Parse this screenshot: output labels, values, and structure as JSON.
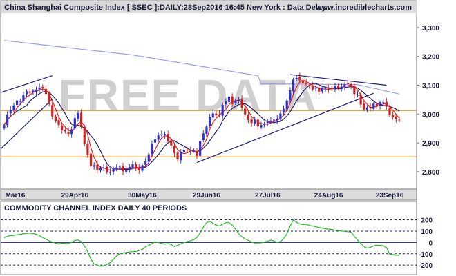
{
  "header": {
    "title": "China Shanghai Composite Index [ SSEC ]:DAILY:28Sep2016 16:45 New York : Data Delay..",
    "site": "www.incrediblecharts.com",
    "watermark": "FREE DATA"
  },
  "colors": {
    "background": "#ffffff",
    "panel_border": "#7f7f7f",
    "up_candle": "#3333cc",
    "down_candle": "#cc2222",
    "ma_fast": "#e02020",
    "ma_mid": "#1c1c6e",
    "ma_slow": "#9a9aff",
    "support_line": "#d98a00",
    "trend_line": "#1a1a80",
    "cci_line": "#22bb22",
    "cci_ref_line": "#1c1c6e",
    "title_bar": "#d9d9d9",
    "date_bar": "#dcdcdc"
  },
  "chart_data": [
    {
      "type": "candlestick",
      "title": "China Shanghai Composite Index [ SSEC ]:DAILY:28Sep2016 16:45 New York : Data Delay..",
      "y_ticks": [
        3300,
        3200,
        3100,
        3000,
        2900,
        2800
      ],
      "y_tick_labels": [
        "3,300",
        "3,200",
        "3,100",
        "3,000",
        "2,900",
        "2,800"
      ],
      "ylim": [
        2740,
        3350
      ],
      "x_tick_labels": [
        "Mar16",
        "29Apr16",
        "30May16",
        "29Jun16",
        "27Jul16",
        "24Aug16",
        "23Sep16"
      ],
      "x_tick_positions": [
        0,
        22,
        43,
        63,
        82,
        101,
        120
      ],
      "bar_count": 124,
      "horizontal_lines": [
        3012,
        2852
      ],
      "trend_lines": [
        {
          "from": [
            -1,
            3075
          ],
          "to": [
            15,
            3133
          ]
        },
        {
          "from": [
            -1,
            2880
          ],
          "to": [
            15,
            3052
          ]
        },
        {
          "from": [
            89,
            3137
          ],
          "to": [
            119,
            3100
          ]
        },
        {
          "from": [
            60,
            2832
          ],
          "to": [
            115,
            3072
          ]
        }
      ],
      "closes": [
        2962,
        2999,
        3014,
        3030,
        3047,
        3045,
        3066,
        3079,
        3074,
        3081,
        3085,
        3091,
        3089,
        3070,
        3034,
        2992,
        2976,
        2962,
        2944,
        2940,
        2931,
        2947,
        2986,
        3003,
        2955,
        2898,
        2860,
        2819,
        2823,
        2807,
        2812,
        2814,
        2798,
        2799,
        2811,
        2815,
        2818,
        2801,
        2806,
        2817,
        2826,
        2811,
        2805,
        2823,
        2837,
        2861,
        2898,
        2912,
        2926,
        2930,
        2931,
        2906,
        2891,
        2865,
        2843,
        2869,
        2874,
        2875,
        2871,
        2873,
        2855,
        2907,
        2933,
        2957,
        2991,
        3002,
        2996,
        2996,
        3032,
        3044,
        3061,
        3035,
        3046,
        3050,
        3022,
        2998,
        2979,
        2969,
        2979,
        2957,
        2962,
        2967,
        2973,
        2976,
        2981,
        2984,
        3002,
        3018,
        3047,
        3082,
        3120,
        3126,
        3117,
        3108,
        3103,
        3099,
        3085,
        3092,
        3077,
        3091,
        3088,
        3086,
        3087,
        3096,
        3090,
        3095,
        3103,
        3105,
        3097,
        3069,
        3066,
        3033,
        3016,
        3023,
        3021,
        3036,
        3026,
        3041,
        3041,
        3026,
        2996,
        2989,
        2982,
        2979
      ]
    },
    {
      "type": "line",
      "title": "COMMODITY CHANNEL INDEX DAILY 40 PERIODS",
      "y_ticks": [
        200,
        100,
        0,
        -100,
        -200
      ],
      "y_tick_labels": [
        "200",
        "100",
        "0",
        "-100",
        "-200"
      ],
      "ylim": [
        -260,
        240
      ],
      "reference_lines": [
        200,
        100,
        0,
        -100,
        -200
      ],
      "series": [
        {
          "name": "",
          "values": [
            42,
            55,
            60,
            62,
            68,
            72,
            76,
            80,
            82,
            79,
            72,
            60,
            44,
            30,
            14,
            4,
            -6,
            -12,
            -6,
            -8,
            -10,
            2,
            18,
            22,
            8,
            -30,
            -80,
            -150,
            -190,
            -200,
            -210,
            -205,
            -195,
            -178,
            -150,
            -120,
            -100,
            -93,
            -88,
            -84,
            -82,
            -80,
            -72,
            -60,
            -40,
            -25,
            -10,
            5,
            0,
            -8,
            -15,
            -10,
            -18,
            -36,
            -26,
            -12,
            0,
            8,
            15,
            24,
            44,
            86,
            135,
            175,
            187,
            170,
            152,
            145,
            160,
            175,
            175,
            152,
            118,
            76,
            50,
            32,
            18,
            4,
            -5,
            -4,
            -3,
            4,
            12,
            20,
            14,
            0,
            8,
            34,
            76,
            145,
            199,
            178,
            164,
            158,
            160,
            150,
            145,
            139,
            132,
            127,
            120,
            118,
            115,
            108,
            104,
            101,
            98,
            95,
            91,
            54,
            22,
            -8,
            -37,
            -49,
            -43,
            -30,
            -23,
            -26,
            -29,
            -46,
            -103,
            -107,
            -113,
            -113
          ]
        }
      ]
    }
  ]
}
